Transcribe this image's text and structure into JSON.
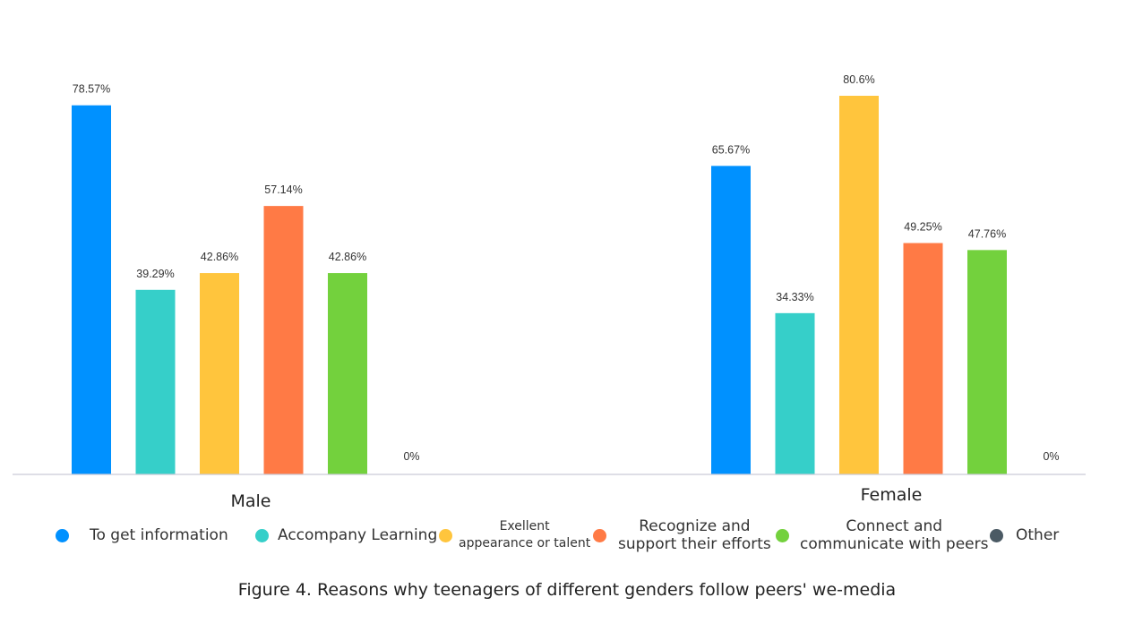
{
  "chart_data": {
    "type": "bar",
    "title": "",
    "xlabel": "",
    "ylabel": "",
    "ylim": [
      0,
      100
    ],
    "grid": false,
    "legend_position": "bottom",
    "categories": [
      "Male",
      "Female"
    ],
    "series": [
      {
        "name": "To get information",
        "color": "#0091FF",
        "values": [
          78.57,
          65.67
        ],
        "labels": [
          "78.57%",
          "65.67%"
        ]
      },
      {
        "name": "Accompany Learning",
        "color": "#36CFC9",
        "values": [
          39.29,
          34.33
        ],
        "labels": [
          "39.29%",
          "34.33%"
        ]
      },
      {
        "name": "Exellent\nappearance or talent",
        "color": "#FFC53D",
        "values": [
          42.86,
          80.6
        ],
        "labels": [
          "42.86%",
          "80.6%"
        ]
      },
      {
        "name": "Recognize and\nsupport their efforts",
        "color": "#FF7A45",
        "values": [
          57.14,
          49.25
        ],
        "labels": [
          "57.14%",
          "49.25%"
        ]
      },
      {
        "name": "Connect and\ncommunicate with peers",
        "color": "#73D13D",
        "values": [
          42.86,
          47.76
        ],
        "labels": [
          "42.86%",
          "47.76%"
        ]
      },
      {
        "name": "Other",
        "color": "#4B5A64",
        "values": [
          0,
          0
        ],
        "labels": [
          "0%",
          "0%"
        ]
      }
    ]
  },
  "caption": "Figure 4. Reasons why teenagers of different genders follow peers' we-media"
}
